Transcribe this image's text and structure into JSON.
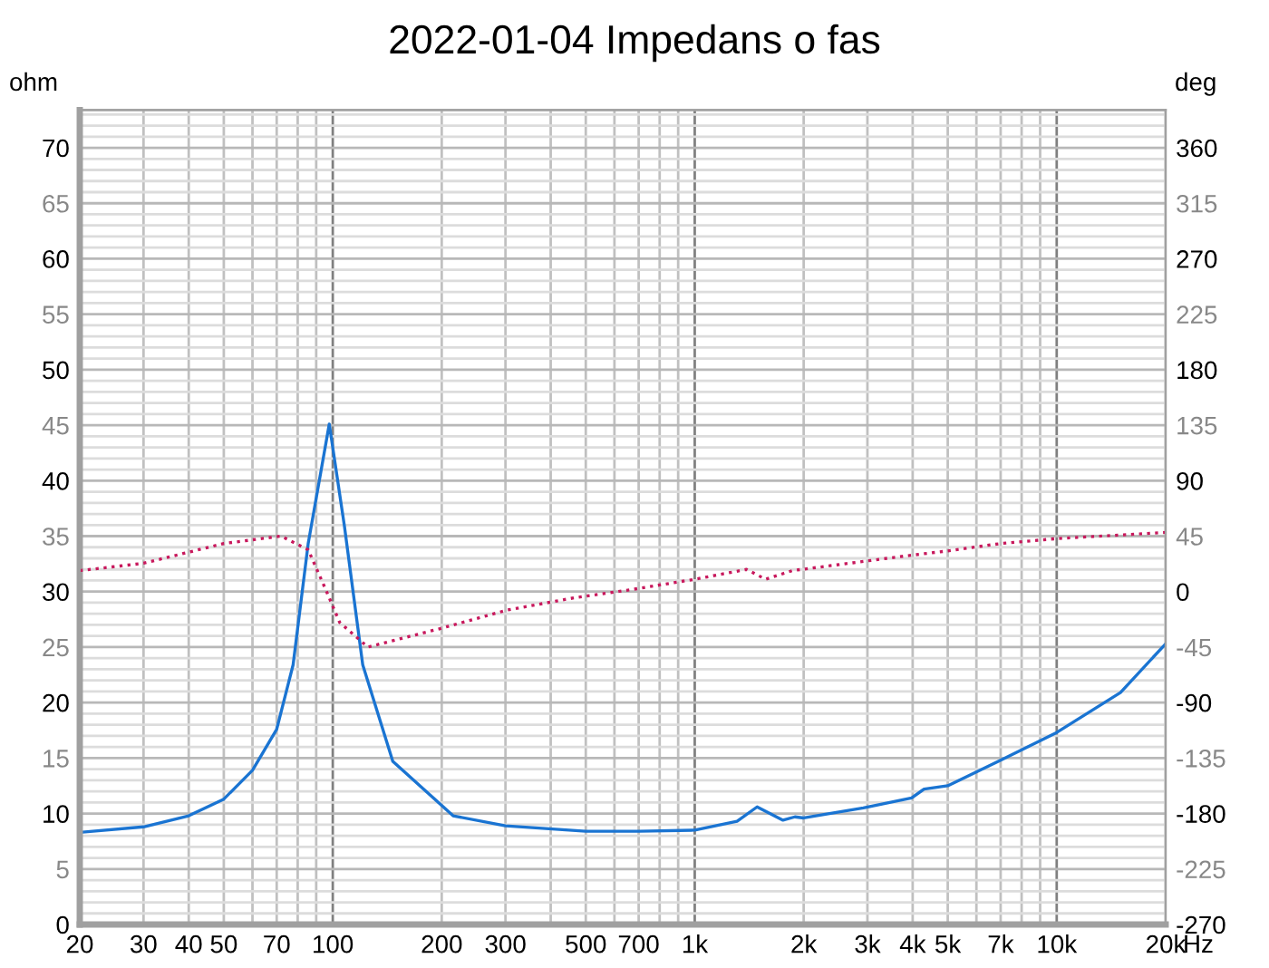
{
  "chart_data": {
    "type": "line",
    "title": "2022-01-04 Impedans o fas",
    "ylabel": "ohm",
    "y2label": "deg",
    "log": "x",
    "grid": true,
    "legend": false,
    "marker": "none",
    "xlim": [
      20,
      20000
    ],
    "xticks": [
      20,
      30,
      40,
      50,
      {
        "value": 60,
        "label": null
      },
      70,
      {
        "value": 80,
        "label": null
      },
      {
        "value": 90,
        "label": null
      },
      100,
      200,
      300,
      {
        "value": 400,
        "label": null
      },
      500,
      {
        "value": 600,
        "label": null
      },
      700,
      {
        "value": 800,
        "label": null
      },
      {
        "value": 900,
        "label": null
      },
      {
        "value": 1000,
        "label": "1k"
      },
      {
        "value": 2000,
        "label": "2k"
      },
      {
        "value": 3000,
        "label": "3k"
      },
      {
        "value": 4000,
        "label": "4k"
      },
      {
        "value": 5000,
        "label": "5k"
      },
      {
        "value": 6000,
        "label": null
      },
      {
        "value": 7000,
        "label": "7k"
      },
      {
        "value": 8000,
        "label": null
      },
      {
        "value": 9000,
        "label": null
      },
      {
        "value": 10000,
        "label": "10k"
      },
      {
        "value": 20000,
        "label": "20k"
      }
    ],
    "xlabel": "Hz",
    "ylim": [
      0,
      73.4
    ],
    "yticks": [
      0,
      {
        "value": 1,
        "label": null
      },
      {
        "value": 2,
        "label": null
      },
      {
        "value": 3,
        "label": null
      },
      {
        "value": 4,
        "label": null
      },
      5,
      {
        "value": 6,
        "label": null
      },
      {
        "value": 7,
        "label": null
      },
      {
        "value": 8,
        "label": null
      },
      {
        "value": 9,
        "label": null
      },
      10,
      {
        "value": 11,
        "label": null
      },
      {
        "value": 12,
        "label": null
      },
      {
        "value": 13,
        "label": null
      },
      {
        "value": 14,
        "label": null
      },
      15,
      {
        "value": 16,
        "label": null
      },
      {
        "value": 17,
        "label": null
      },
      {
        "value": 18,
        "label": null
      },
      {
        "value": 19,
        "label": null
      },
      20,
      {
        "value": 21,
        "label": null
      },
      {
        "value": 22,
        "label": null
      },
      {
        "value": 23,
        "label": null
      },
      {
        "value": 24,
        "label": null
      },
      25,
      {
        "value": 26,
        "label": null
      },
      {
        "value": 27,
        "label": null
      },
      {
        "value": 28,
        "label": null
      },
      {
        "value": 29,
        "label": null
      },
      30,
      {
        "value": 31,
        "label": null
      },
      {
        "value": 32,
        "label": null
      },
      {
        "value": 33,
        "label": null
      },
      {
        "value": 34,
        "label": null
      },
      35,
      {
        "value": 36,
        "label": null
      },
      {
        "value": 37,
        "label": null
      },
      {
        "value": 38,
        "label": null
      },
      {
        "value": 39,
        "label": null
      },
      40,
      {
        "value": 41,
        "label": null
      },
      {
        "value": 42,
        "label": null
      },
      {
        "value": 43,
        "label": null
      },
      {
        "value": 44,
        "label": null
      },
      45,
      {
        "value": 46,
        "label": null
      },
      {
        "value": 47,
        "label": null
      },
      {
        "value": 48,
        "label": null
      },
      {
        "value": 49,
        "label": null
      },
      50,
      {
        "value": 51,
        "label": null
      },
      {
        "value": 52,
        "label": null
      },
      {
        "value": 53,
        "label": null
      },
      {
        "value": 54,
        "label": null
      },
      55,
      {
        "value": 56,
        "label": null
      },
      {
        "value": 57,
        "label": null
      },
      {
        "value": 58,
        "label": null
      },
      {
        "value": 59,
        "label": null
      },
      60,
      {
        "value": 61,
        "label": null
      },
      {
        "value": 62,
        "label": null
      },
      {
        "value": 63,
        "label": null
      },
      {
        "value": 64,
        "label": null
      },
      65,
      {
        "value": 66,
        "label": null
      },
      {
        "value": 67,
        "label": null
      },
      {
        "value": 68,
        "label": null
      },
      {
        "value": 69,
        "label": null
      },
      70,
      {
        "value": 71,
        "label": null
      },
      {
        "value": 72,
        "label": null
      },
      {
        "value": 73,
        "label": null
      }
    ],
    "y2lim": [
      -270,
      390.6
    ],
    "y2ticks": [
      -270,
      -225,
      -180,
      -135,
      -90,
      -45,
      0,
      45,
      90,
      135,
      180,
      225,
      270,
      315,
      360
    ],
    "series": [
      {
        "color": "#1a74d2",
        "line_style": "solid",
        "x": [
          20,
          30,
          40,
          50,
          60,
          70,
          77.7,
          85.5,
          97.8,
          107.7,
          121,
          146.5,
          215,
          300,
          500,
          700,
          1000,
          1309,
          1487,
          1753,
          1891,
          2000,
          2922,
          3973,
          4300,
          5000,
          7000,
          10000,
          15000,
          20000
        ],
        "values": [
          8.3,
          8.8,
          9.8,
          11.3,
          13.9,
          17.6,
          23.4,
          34.3,
          45.1,
          35.9,
          23.4,
          14.7,
          9.8,
          8.9,
          8.4,
          8.4,
          8.5,
          9.3,
          10.6,
          9.4,
          9.7,
          9.6,
          10.5,
          11.4,
          12.2,
          12.5,
          14.8,
          17.3,
          20.9,
          25.3
        ]
      },
      {
        "color": "#c8185c",
        "line_style": "dotted",
        "axis": "y2",
        "x": [
          20,
          30,
          40,
          50,
          71.9,
          85.5,
          95.5,
          104.5,
          125,
          198,
          303,
          465,
          681,
          1000,
          1390,
          1570,
          1860,
          3840,
          5000,
          7000,
          10000,
          20000
        ],
        "values": [
          17,
          23,
          32,
          39,
          45,
          34,
          2,
          -25,
          -45,
          -30,
          -15,
          -5,
          2,
          10,
          18,
          10,
          17,
          29,
          33,
          39,
          43,
          48
        ]
      }
    ]
  }
}
